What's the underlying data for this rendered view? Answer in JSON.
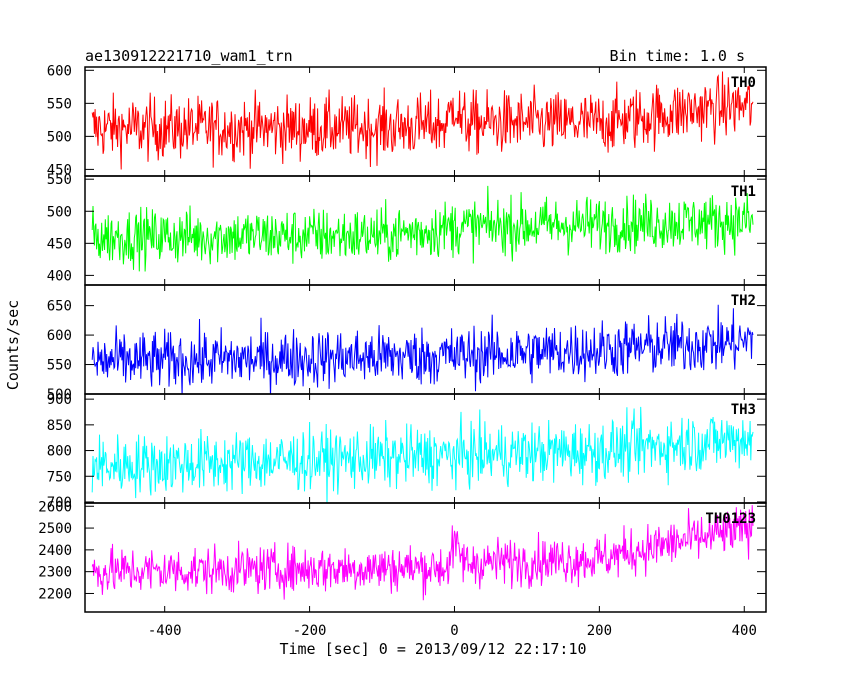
{
  "header": {
    "title": "ae130912221710_wam1_trn",
    "bin_time": "Bin time: 1.0 s"
  },
  "chart_data": {
    "type": "line",
    "title": "ae130912221710_wam1_trn",
    "xlabel": "Time [sec] 0 = 2013/09/12 22:17:10",
    "ylabel": "Counts/sec",
    "xlim": [
      -510,
      430
    ],
    "x_range": [
      -500,
      412
    ],
    "x_ticks": [
      -400,
      -200,
      0,
      200,
      400
    ],
    "panels": [
      {
        "name": "TH0",
        "color": "#ff0000",
        "ylim": [
          440,
          605
        ],
        "yticks": [
          450,
          500,
          550,
          600
        ],
        "trend": [
          [
            -500,
            512
          ],
          [
            -100,
            513
          ],
          [
            -10,
            518
          ],
          [
            0,
            555
          ],
          [
            10,
            520
          ],
          [
            200,
            520
          ],
          [
            330,
            540
          ],
          [
            412,
            548
          ]
        ],
        "noise": 24
      },
      {
        "name": "TH1",
        "color": "#00ff00",
        "ylim": [
          385,
          555
        ],
        "yticks": [
          400,
          450,
          500,
          550
        ],
        "trend": [
          [
            -500,
            460
          ],
          [
            -100,
            462
          ],
          [
            0,
            475
          ],
          [
            200,
            480
          ],
          [
            412,
            485
          ]
        ],
        "noise": 22
      },
      {
        "name": "TH2",
        "color": "#0000ff",
        "ylim": [
          500,
          685
        ],
        "yticks": [
          500,
          550,
          600,
          650
        ],
        "trend": [
          [
            -500,
            555
          ],
          [
            0,
            565
          ],
          [
            200,
            575
          ],
          [
            412,
            590
          ]
        ],
        "noise": 25
      },
      {
        "name": "TH3",
        "color": "#00ffff",
        "ylim": [
          698,
          910
        ],
        "yticks": [
          700,
          750,
          800,
          850,
          900
        ],
        "trend": [
          [
            -500,
            770
          ],
          [
            0,
            790
          ],
          [
            200,
            800
          ],
          [
            412,
            825
          ]
        ],
        "noise": 30
      },
      {
        "name": "TH0123",
        "color": "#ff00ff",
        "ylim": [
          2115,
          2615
        ],
        "yticks": [
          2200,
          2300,
          2400,
          2500,
          2600
        ],
        "trend": [
          [
            -500,
            2300
          ],
          [
            -10,
            2320
          ],
          [
            0,
            2420
          ],
          [
            15,
            2340
          ],
          [
            200,
            2360
          ],
          [
            300,
            2430
          ],
          [
            412,
            2500
          ]
        ],
        "noise": 55
      }
    ]
  }
}
